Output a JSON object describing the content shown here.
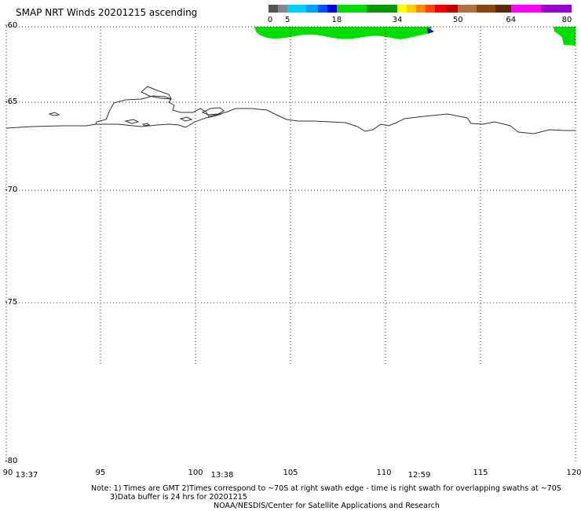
{
  "title": "SMAP NRT Winds 20201215 ascending",
  "colorbar": {
    "segments": [
      {
        "color": "#555555",
        "from": 0,
        "to": 2.5
      },
      {
        "color": "#888888",
        "from": 2.5,
        "to": 5
      },
      {
        "color": "#00d0ff",
        "from": 5,
        "to": 10
      },
      {
        "color": "#00a0ff",
        "from": 10,
        "to": 13
      },
      {
        "color": "#0050ff",
        "from": 13,
        "to": 15.5
      },
      {
        "color": "#0000dd",
        "from": 15.5,
        "to": 18
      },
      {
        "color": "#00dd00",
        "from": 18,
        "to": 26
      },
      {
        "color": "#009900",
        "from": 26,
        "to": 34
      },
      {
        "color": "#ffff00",
        "from": 34,
        "to": 36.5
      },
      {
        "color": "#ffcc00",
        "from": 36.5,
        "to": 39
      },
      {
        "color": "#ff8800",
        "from": 39,
        "to": 41.5
      },
      {
        "color": "#ff4400",
        "from": 41.5,
        "to": 44
      },
      {
        "color": "#ee0000",
        "from": 44,
        "to": 47
      },
      {
        "color": "#bb0000",
        "from": 47,
        "to": 50
      },
      {
        "color": "#b07040",
        "from": 50,
        "to": 55
      },
      {
        "color": "#8b4513",
        "from": 55,
        "to": 60
      },
      {
        "color": "#5a2a0a",
        "from": 60,
        "to": 64
      },
      {
        "color": "#ff00ff",
        "from": 64,
        "to": 72
      },
      {
        "color": "#9900cc",
        "from": 72,
        "to": 80
      }
    ],
    "labels": [
      "0",
      "5",
      "18",
      "34",
      "50",
      "64",
      "80"
    ]
  },
  "axes": {
    "lat_labels": [
      "-60",
      "-65",
      "-70",
      "-75",
      "-80"
    ],
    "lon_labels": [
      "90",
      "95",
      "100",
      "105",
      "110",
      "115",
      "120"
    ],
    "lat_range": [
      -80,
      -60
    ],
    "lon_range": [
      90,
      120
    ]
  },
  "pass_times": [
    "13:37",
    "13:38",
    "12:59"
  ],
  "notes": {
    "line1": "Note: 1) Times are GMT 2)Times correspond to ~70S at right swath edge - time is right swath for overlapping swaths at ~70S",
    "line2": "3)Data buffer is 24 hrs for 20201215",
    "line3": "NOAA/NESDIS/Center for Satellite Applications and Research"
  },
  "colors": {
    "swath_green": "#00dd00",
    "swath_blue": "#0000dd",
    "coastline": "#333333",
    "grid": "#000000"
  }
}
